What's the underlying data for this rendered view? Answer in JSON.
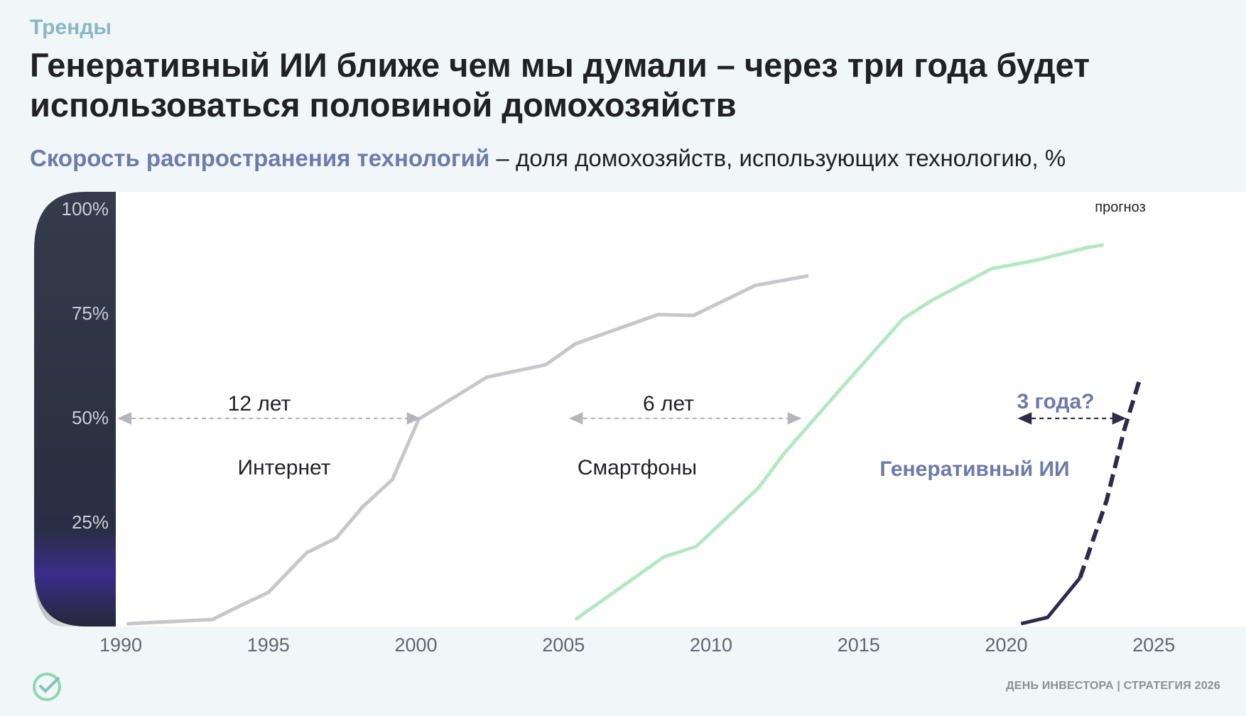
{
  "header": {
    "eyebrow": "Тренды",
    "title": "Генеративный ИИ ближе чем мы думали – через три года будет использоваться половиной домохозяйств",
    "subtitle_accent": "Скорость распространения технологий",
    "subtitle_rest": " – доля домохозяйств, использующих технологию, %"
  },
  "footer": {
    "text": "ДЕНЬ ИНВЕСТОРА | СТРАТЕГИЯ 2026",
    "logo_icon": "sber-logo-icon"
  },
  "chart_data": {
    "type": "line",
    "x_ticks": [
      1990,
      1995,
      2000,
      2005,
      2010,
      2015,
      2020,
      2025
    ],
    "y_ticks": [
      {
        "value": 100,
        "label": "100%"
      },
      {
        "value": 75,
        "label": "75%"
      },
      {
        "value": 50,
        "label": "50%"
      },
      {
        "value": 25,
        "label": "25%"
      }
    ],
    "xlim": [
      1990,
      2032
    ],
    "ylim": [
      0,
      104
    ],
    "forecast_label": "прогноз",
    "series": [
      {
        "name": "Интернет",
        "color": "#c6c7ca",
        "style": "solid",
        "points": [
          [
            1990.2,
            0.5
          ],
          [
            1993.1,
            1.5
          ],
          [
            1994.1,
            5
          ],
          [
            1995.0,
            8
          ],
          [
            1996.3,
            17.5
          ],
          [
            1997.3,
            21
          ],
          [
            1998.2,
            28.5
          ],
          [
            1999.2,
            35
          ],
          [
            2000.1,
            49.5
          ],
          [
            2002.4,
            59.5
          ],
          [
            2004.4,
            62.5
          ],
          [
            2005.4,
            67.5
          ],
          [
            2008.2,
            74.5
          ],
          [
            2009.4,
            74.3
          ],
          [
            2011.5,
            81.5
          ],
          [
            2013.3,
            83.8
          ]
        ]
      },
      {
        "name": "Смартфоны",
        "color": "#b3e8c3",
        "style": "solid",
        "points": [
          [
            2005.4,
            1.5
          ],
          [
            2008.4,
            16.5
          ],
          [
            2009.5,
            19
          ],
          [
            2011.6,
            33
          ],
          [
            2012.5,
            41.5
          ],
          [
            2014.3,
            56
          ],
          [
            2016.5,
            73.5
          ],
          [
            2017.5,
            78
          ],
          [
            2019.5,
            85.5
          ],
          [
            2021,
            87.5
          ],
          [
            2022.7,
            90.5
          ],
          [
            2023.3,
            91.2
          ]
        ]
      },
      {
        "name": "Генеративный ИИ",
        "color": "#2e2b4b",
        "style": "solid",
        "points": [
          [
            2020.5,
            0.5
          ],
          [
            2021.4,
            2
          ],
          [
            2022.5,
            11.5
          ]
        ]
      },
      {
        "name": "Генеративный ИИ",
        "color": "#2e2b4b",
        "style": "dashed",
        "points": [
          [
            2022.5,
            11.5
          ],
          [
            2023.4,
            30
          ],
          [
            2024.0,
            47
          ],
          [
            2024.5,
            58.5
          ]
        ]
      }
    ],
    "annotations": [
      {
        "id": "internet",
        "text": "12 лет",
        "x1": 1990,
        "x2": 2000.1,
        "y": 50
      },
      {
        "id": "smartphones",
        "text": "6 лет",
        "x1": 2005.3,
        "x2": 2013.0,
        "y": 50
      },
      {
        "id": "genai",
        "text": "3 года?",
        "x1": 2020.5,
        "x2": 2024.0,
        "y": 50
      }
    ],
    "series_labels": [
      {
        "id": "internet",
        "text": "Интернет",
        "color": "#1f2125"
      },
      {
        "id": "smartphones",
        "text": "Смартфоны",
        "color": "#1f2125"
      },
      {
        "id": "genai",
        "text": "Генеративный ИИ",
        "color": "#6d7aaa"
      }
    ]
  }
}
